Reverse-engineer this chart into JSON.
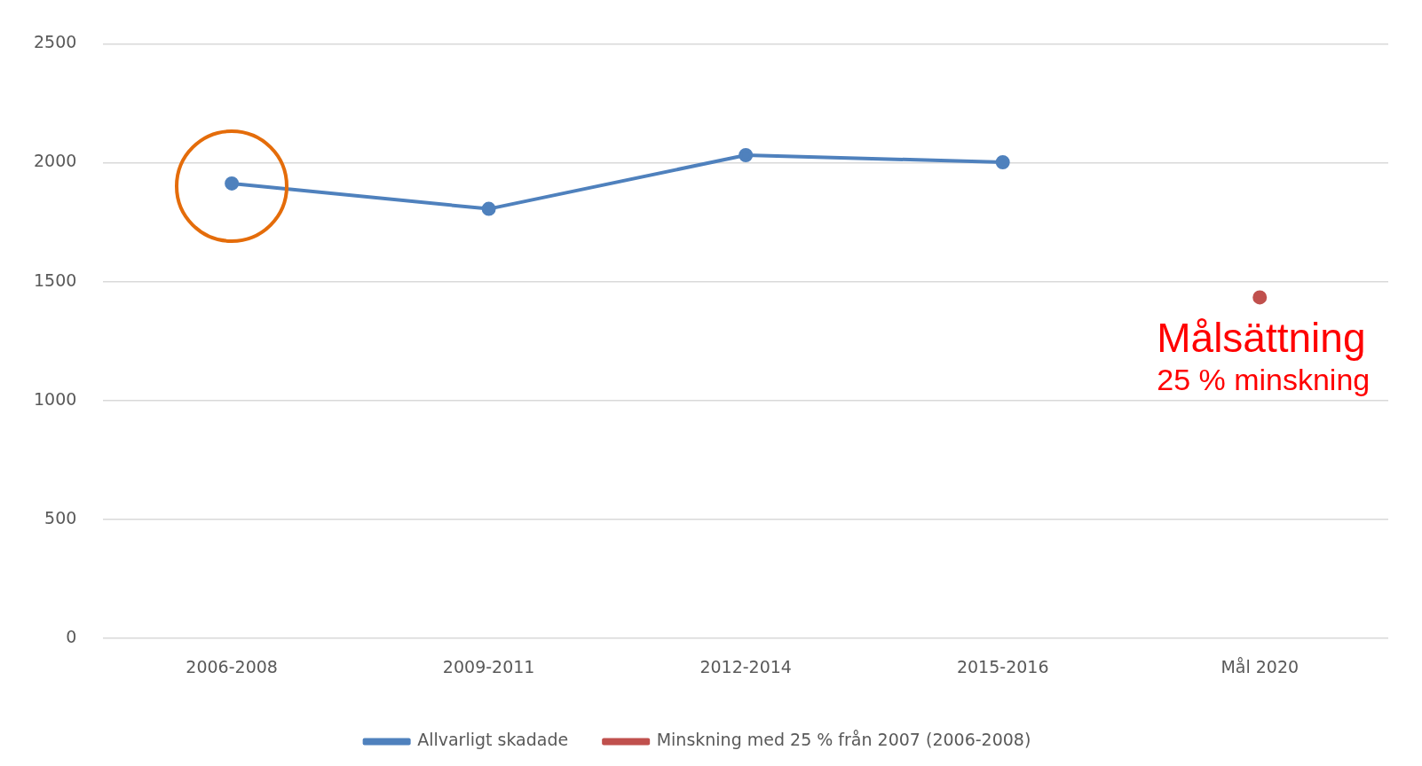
{
  "chart_data": {
    "type": "line",
    "categories": [
      "2006-2008",
      "2009-2011",
      "2012-2014",
      "2015-2016",
      "Mål 2020"
    ],
    "series": [
      {
        "name": "Allvarligt skadade",
        "color": "#4f81bd",
        "values": [
          1913,
          1806,
          2032,
          2002,
          null
        ]
      },
      {
        "name": "Minskning med 25 % från 2007 (2006-2008)",
        "color": "#c0504d",
        "values": [
          null,
          null,
          null,
          null,
          1434
        ]
      }
    ],
    "ylim": [
      0,
      2500
    ],
    "yticks": [
      0,
      500,
      1000,
      1500,
      2000,
      2500
    ],
    "grid": "y",
    "legend": "bottom",
    "marker": "circle",
    "line_style": "solid",
    "annotations": [
      {
        "text": "Målsättning",
        "x": "Mål 2020",
        "y": 1434
      },
      {
        "text": "25 % minskning",
        "x": "Mål 2020",
        "y": 1434
      }
    ]
  }
}
